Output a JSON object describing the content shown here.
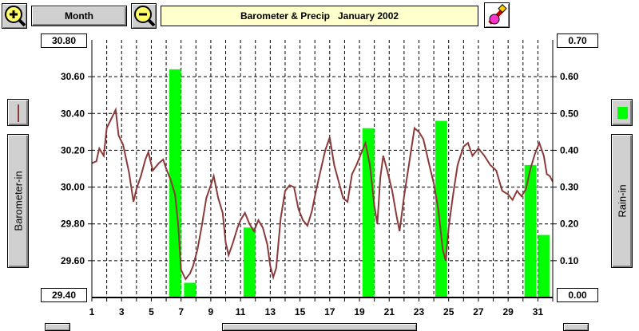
{
  "toolbar": {
    "zoom_in_icon": "magnifier-plus-icon",
    "month_label": "Month",
    "zoom_out_icon": "magnifier-minus-icon",
    "title": "Barometer & Precip   January 2002",
    "paint_icon": "paint-tool-icon"
  },
  "left_panel": {
    "legend_color": "#8b3a3a",
    "axis_label": "Barometer-in"
  },
  "right_panel": {
    "legend_color": "#00ff00",
    "axis_label": "Rain-in"
  },
  "left_axis": {
    "max_label": "30.80",
    "min_label": "29.40",
    "ticks": [
      "30.60",
      "30.40",
      "30.20",
      "30.00",
      "29.80",
      "29.60"
    ]
  },
  "right_axis": {
    "max_label": "0.70",
    "min_label": "0.00",
    "ticks": [
      "0.60",
      "0.50",
      "0.40",
      "0.30",
      "0.20",
      "0.10"
    ]
  },
  "chart_data": {
    "type": "bar",
    "title": "Barometer & Precip   January 2002",
    "x_ticks": [
      "1",
      "3",
      "5",
      "7",
      "9",
      "11",
      "13",
      "15",
      "17",
      "19",
      "21",
      "23",
      "25",
      "27",
      "29",
      "31"
    ],
    "xlim": [
      1,
      32
    ],
    "grid": true,
    "series": [
      {
        "name": "Rain-in",
        "kind": "bar",
        "color": "#00ff00",
        "axis": "right",
        "ylim": [
          0,
          0.7
        ],
        "points": [
          {
            "x": 6.6,
            "y": 0.62
          },
          {
            "x": 7.6,
            "y": 0.04
          },
          {
            "x": 11.6,
            "y": 0.19
          },
          {
            "x": 19.6,
            "y": 0.46
          },
          {
            "x": 24.5,
            "y": 0.48
          },
          {
            "x": 30.5,
            "y": 0.36
          },
          {
            "x": 31.4,
            "y": 0.17
          }
        ]
      },
      {
        "name": "Barometer-in",
        "kind": "line",
        "color": "#8b3a3a",
        "axis": "left",
        "ylim": [
          29.4,
          30.8
        ],
        "points": [
          [
            1.0,
            30.13
          ],
          [
            1.3,
            30.14
          ],
          [
            1.5,
            30.21
          ],
          [
            1.8,
            30.17
          ],
          [
            2.0,
            30.32
          ],
          [
            2.3,
            30.37
          ],
          [
            2.6,
            30.42
          ],
          [
            2.8,
            30.28
          ],
          [
            3.1,
            30.23
          ],
          [
            3.5,
            30.08
          ],
          [
            3.8,
            29.92
          ],
          [
            4.0,
            29.99
          ],
          [
            4.3,
            30.06
          ],
          [
            4.6,
            30.15
          ],
          [
            4.8,
            30.19
          ],
          [
            5.1,
            30.09
          ],
          [
            5.5,
            30.13
          ],
          [
            5.8,
            30.15
          ],
          [
            6.0,
            30.1
          ],
          [
            6.3,
            30.04
          ],
          [
            6.6,
            29.96
          ],
          [
            6.8,
            29.8
          ],
          [
            7.0,
            29.55
          ],
          [
            7.3,
            29.5
          ],
          [
            7.6,
            29.53
          ],
          [
            7.8,
            29.57
          ],
          [
            8.1,
            29.66
          ],
          [
            8.4,
            29.79
          ],
          [
            8.7,
            29.94
          ],
          [
            9.0,
            30.01
          ],
          [
            9.2,
            30.06
          ],
          [
            9.5,
            29.94
          ],
          [
            9.8,
            29.86
          ],
          [
            10.0,
            29.7
          ],
          [
            10.2,
            29.63
          ],
          [
            10.5,
            29.7
          ],
          [
            10.8,
            29.78
          ],
          [
            11.0,
            29.82
          ],
          [
            11.3,
            29.86
          ],
          [
            11.6,
            29.8
          ],
          [
            11.9,
            29.76
          ],
          [
            12.2,
            29.82
          ],
          [
            12.5,
            29.78
          ],
          [
            12.8,
            29.69
          ],
          [
            13.0,
            29.57
          ],
          [
            13.2,
            29.51
          ],
          [
            13.4,
            29.56
          ],
          [
            13.7,
            29.83
          ],
          [
            14.0,
            29.98
          ],
          [
            14.3,
            30.01
          ],
          [
            14.6,
            30.0
          ],
          [
            14.9,
            29.88
          ],
          [
            15.2,
            29.82
          ],
          [
            15.5,
            29.79
          ],
          [
            15.8,
            29.87
          ],
          [
            16.0,
            29.95
          ],
          [
            16.3,
            30.06
          ],
          [
            16.7,
            30.2
          ],
          [
            17.0,
            30.27
          ],
          [
            17.3,
            30.12
          ],
          [
            17.6,
            30.03
          ],
          [
            17.9,
            29.94
          ],
          [
            18.2,
            29.92
          ],
          [
            18.5,
            30.07
          ],
          [
            18.8,
            30.12
          ],
          [
            19.1,
            30.18
          ],
          [
            19.4,
            30.24
          ],
          [
            19.7,
            30.12
          ],
          [
            20.0,
            29.9
          ],
          [
            20.2,
            29.8
          ],
          [
            20.4,
            30.05
          ],
          [
            20.6,
            30.17
          ],
          [
            20.9,
            30.08
          ],
          [
            21.2,
            29.98
          ],
          [
            21.5,
            29.84
          ],
          [
            21.7,
            29.76
          ],
          [
            22.0,
            29.95
          ],
          [
            22.4,
            30.16
          ],
          [
            22.7,
            30.32
          ],
          [
            23.0,
            30.3
          ],
          [
            23.3,
            30.26
          ],
          [
            23.7,
            30.12
          ],
          [
            24.0,
            30.02
          ],
          [
            24.3,
            29.88
          ],
          [
            24.6,
            29.66
          ],
          [
            24.8,
            29.6
          ],
          [
            25.0,
            29.78
          ],
          [
            25.3,
            29.96
          ],
          [
            25.6,
            30.12
          ],
          [
            26.0,
            30.22
          ],
          [
            26.3,
            30.24
          ],
          [
            26.6,
            30.17
          ],
          [
            27.0,
            30.21
          ],
          [
            27.4,
            30.17
          ],
          [
            27.8,
            30.12
          ],
          [
            28.2,
            30.09
          ],
          [
            28.6,
            29.98
          ],
          [
            29.0,
            29.96
          ],
          [
            29.3,
            29.93
          ],
          [
            29.6,
            29.98
          ],
          [
            29.9,
            29.95
          ],
          [
            30.2,
            29.99
          ],
          [
            30.5,
            30.1
          ],
          [
            30.8,
            30.18
          ],
          [
            31.1,
            30.24
          ],
          [
            31.4,
            30.17
          ],
          [
            31.6,
            30.07
          ],
          [
            31.8,
            30.06
          ],
          [
            32.0,
            30.03
          ]
        ]
      }
    ]
  }
}
